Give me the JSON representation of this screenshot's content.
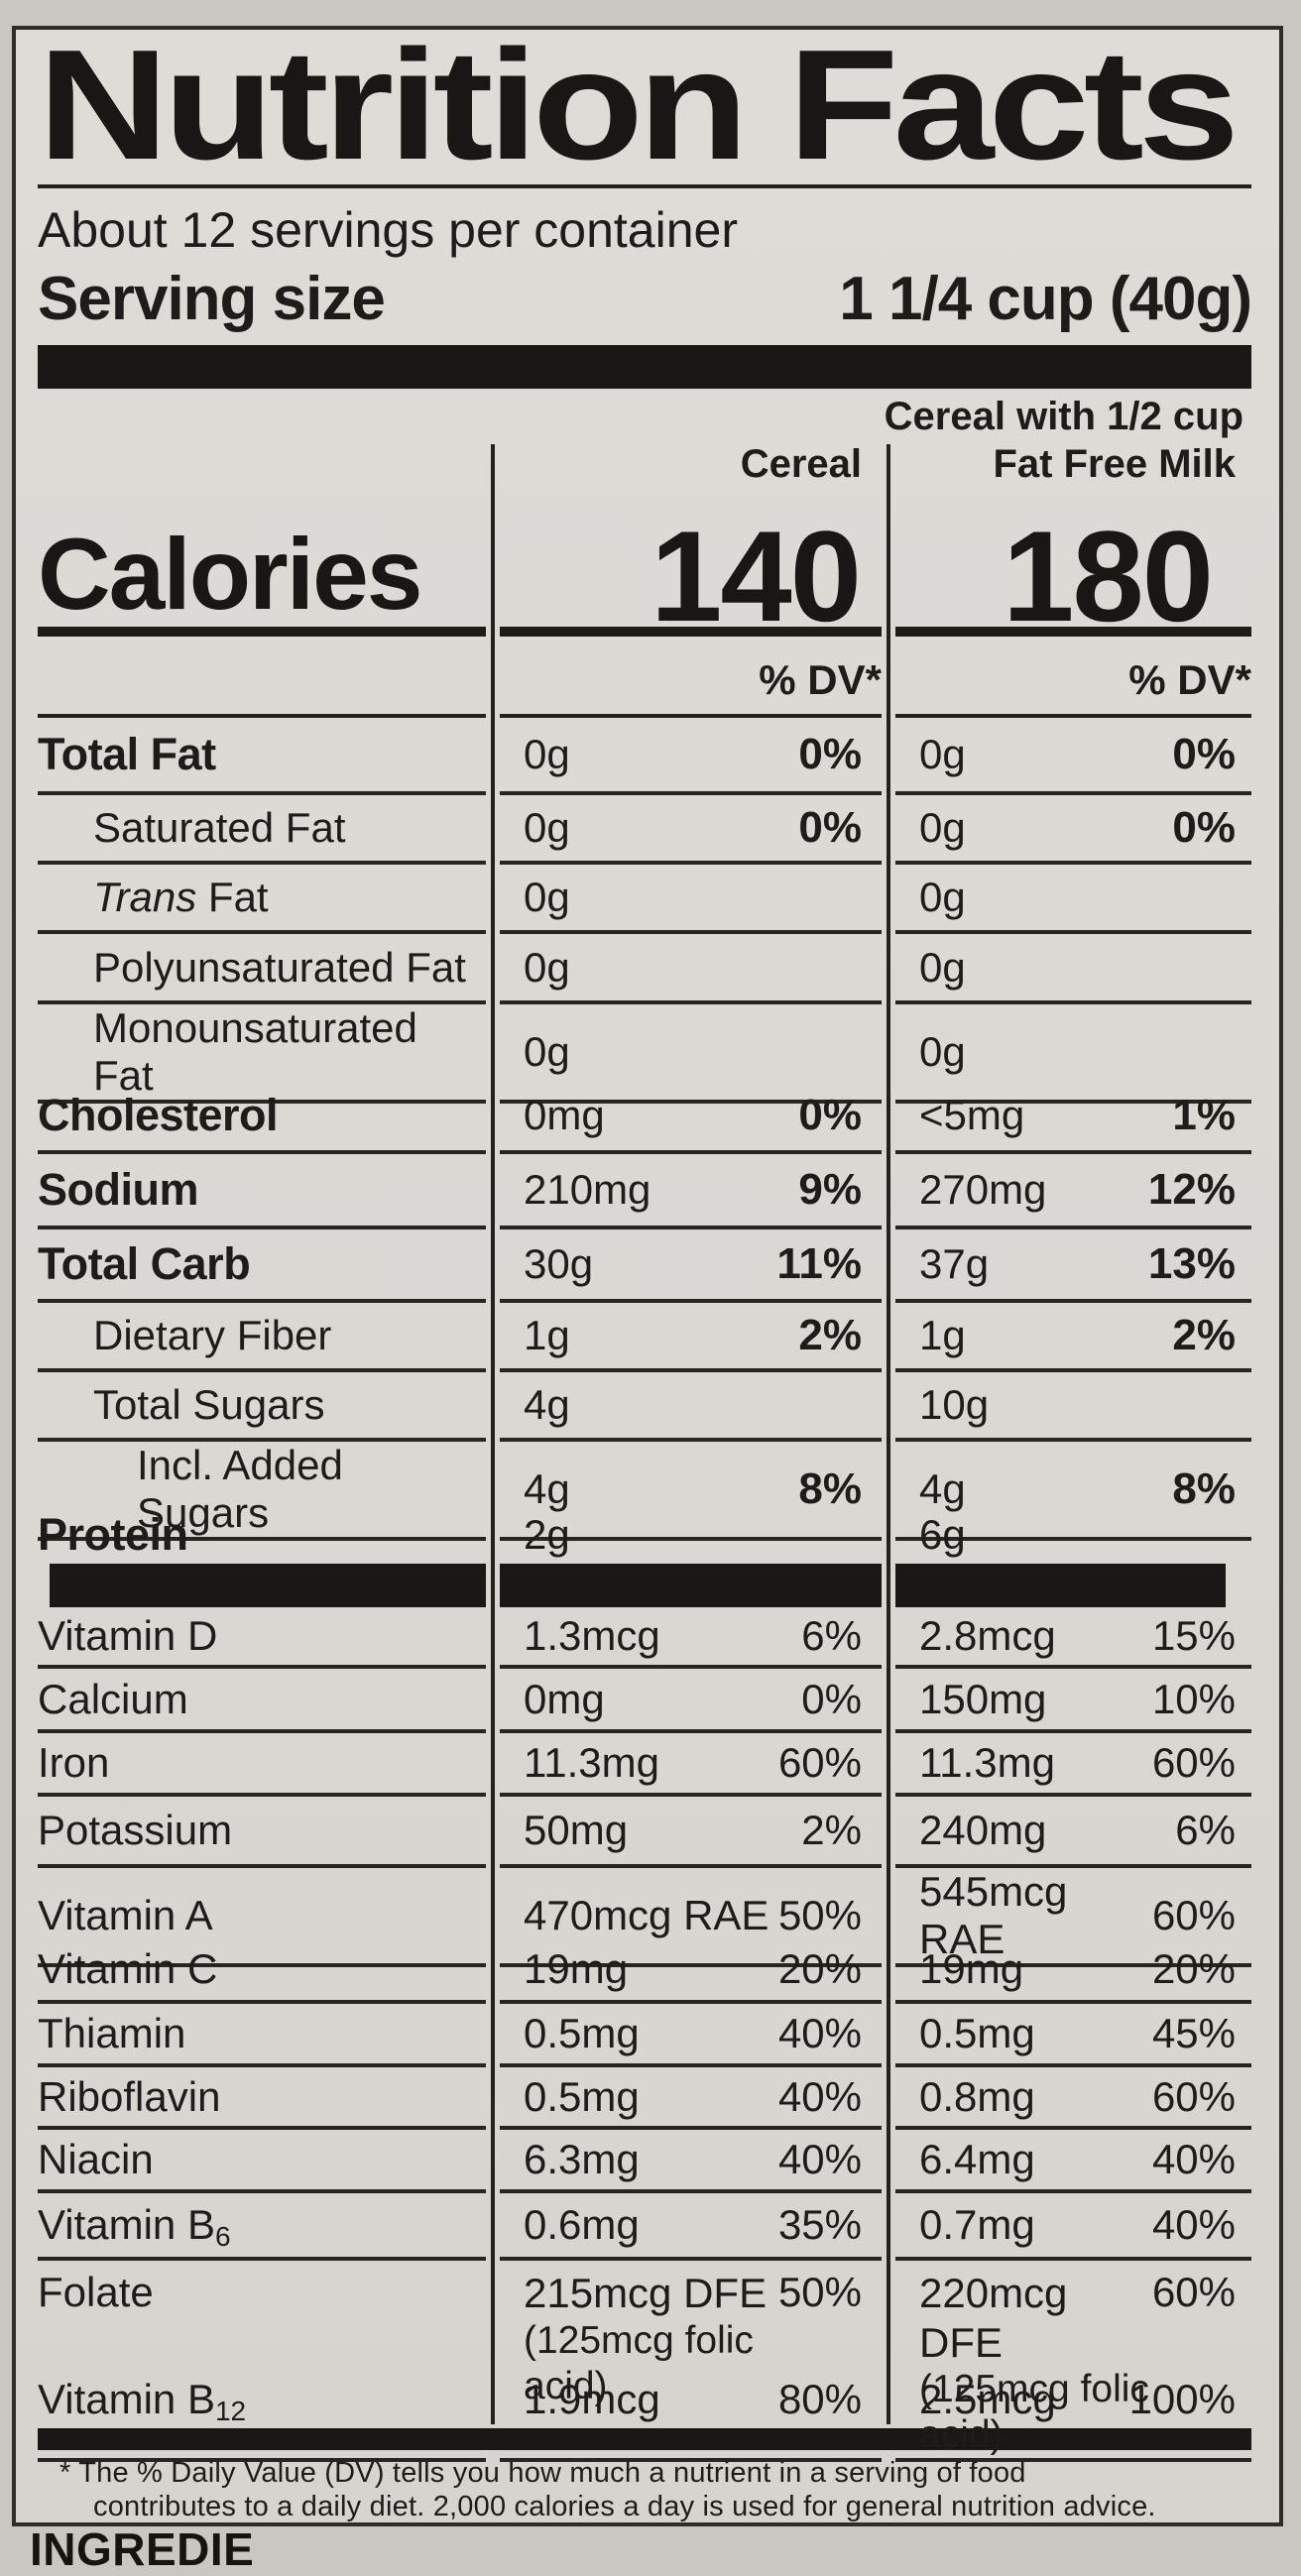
{
  "colors": {
    "paper": "#dad8d3",
    "ink": "#1d1c1a",
    "bar": "#191816"
  },
  "title": "Nutrition Facts",
  "servings_per_container": "About 12 servings per container",
  "serving_size": {
    "label": "Serving size",
    "value": "1 1/4 cup (40g)"
  },
  "columns": {
    "cereal_header": "Cereal",
    "milk_header_line1": "Cereal with 1/2 cup",
    "milk_header_line2": "Fat Free Milk",
    "dv_header_cereal": "% DV*",
    "dv_header_milk": "% DV*"
  },
  "calories": {
    "label": "Calories",
    "cereal": "140",
    "milk": "180"
  },
  "rows": [
    {
      "label": "Total Fat",
      "bold": true,
      "indent": 0,
      "h": 78,
      "c2_amt": "0g",
      "c2_dv": "0%",
      "c3_amt": "0g",
      "c3_dv": "0%",
      "dv_bold": true,
      "border": true
    },
    {
      "label": "Saturated Fat",
      "indent": 1,
      "h": 70,
      "c2_amt": "0g",
      "c2_dv": "0%",
      "c3_amt": "0g",
      "c3_dv": "0%",
      "dv_bold": true,
      "border": true
    },
    {
      "label": " Fat",
      "label_italic": "Trans",
      "indent": 1,
      "h": 70,
      "c2_amt": "0g",
      "c2_dv": "",
      "c3_amt": "0g",
      "c3_dv": "",
      "border": true
    },
    {
      "label": "Polyunsaturated Fat",
      "indent": 1,
      "h": 71,
      "c2_amt": "0g",
      "c2_dv": "",
      "c3_amt": "0g",
      "c3_dv": "",
      "border": true
    },
    {
      "label": "Monounsaturated Fat",
      "indent": 1,
      "h": 76,
      "c2_amt": "0g",
      "c2_dv": "",
      "c3_amt": "0g",
      "c3_dv": "",
      "border": true
    },
    {
      "label": "Cholesterol",
      "bold": true,
      "indent": 0,
      "h": 75,
      "c2_amt": "0mg",
      "c2_dv": "0%",
      "c3_amt": "<5mg",
      "c3_dv": "1%",
      "dv_bold": true,
      "border": true
    },
    {
      "label": "Sodium",
      "bold": true,
      "indent": 0,
      "h": 76,
      "c2_amt": "210mg",
      "c2_dv": "9%",
      "c3_amt": "270mg",
      "c3_dv": "12%",
      "dv_bold": true,
      "border": true
    },
    {
      "label": "Total Carb",
      "bold": true,
      "indent": 0,
      "h": 74,
      "c2_amt": "30g",
      "c2_dv": "11%",
      "c3_amt": "37g",
      "c3_dv": "13%",
      "dv_bold": true,
      "border": true
    },
    {
      "label": "Dietary Fiber",
      "indent": 1,
      "h": 70,
      "c2_amt": "1g",
      "c2_dv": "2%",
      "c3_amt": "1g",
      "c3_dv": "2%",
      "dv_bold": true,
      "border": true
    },
    {
      "label": "Total Sugars",
      "indent": 1,
      "h": 70,
      "c2_amt": "4g",
      "c2_dv": "",
      "c3_amt": "10g",
      "c3_dv": "",
      "border": true
    },
    {
      "label": "Incl. Added Sugars",
      "indent": 2,
      "h": 64,
      "c2_amt": "4g",
      "c2_dv": "8%",
      "c3_amt": "4g",
      "c3_dv": "8%",
      "dv_bold": true,
      "border": true
    },
    {
      "label": "Protein",
      "bold": true,
      "indent": 0,
      "h": 59,
      "c2_amt": "2g",
      "c2_dv": "",
      "c3_amt": "6g",
      "c3_dv": "",
      "border": false
    },
    {
      "type": "blackbar",
      "h": 44
    },
    {
      "label": "Vitamin D",
      "indent": 0,
      "h": 62,
      "c2_amt": "1.3mcg",
      "c2_dv": "6%",
      "c3_amt": "2.8mcg",
      "c3_dv": "15%",
      "border": true
    },
    {
      "label": "Calcium",
      "indent": 0,
      "h": 65,
      "c2_amt": "0mg",
      "c2_dv": "0%",
      "c3_amt": "150mg",
      "c3_dv": "10%",
      "border": true
    },
    {
      "label": "Iron",
      "indent": 0,
      "h": 64,
      "c2_amt": "11.3mg",
      "c2_dv": "60%",
      "c3_amt": "11.3mg",
      "c3_dv": "60%",
      "border": true
    },
    {
      "label": "Potassium",
      "indent": 0,
      "h": 72,
      "c2_amt": "50mg",
      "c2_dv": "2%",
      "c3_amt": "240mg",
      "c3_dv": "6%",
      "border": true
    },
    {
      "label": "Vitamin A",
      "indent": 0,
      "h": 70,
      "c2_amt": "470mcg RAE",
      "c2_dv": "50%",
      "c3_amt": "545mcg RAE",
      "c3_dv": "60%",
      "border": true
    },
    {
      "label": "Vitamin C",
      "indent": 0,
      "h": 67,
      "c2_amt": "19mg",
      "c2_dv": "20%",
      "c3_amt": "19mg",
      "c3_dv": "20%",
      "border": true
    },
    {
      "label": "Thiamin",
      "indent": 0,
      "h": 64,
      "c2_amt": "0.5mg",
      "c2_dv": "40%",
      "c3_amt": "0.5mg",
      "c3_dv": "45%",
      "border": true
    },
    {
      "label": "Riboflavin",
      "indent": 0,
      "h": 63,
      "c2_amt": "0.5mg",
      "c2_dv": "40%",
      "c3_amt": "0.8mg",
      "c3_dv": "60%",
      "border": true
    },
    {
      "label": "Niacin",
      "indent": 0,
      "h": 64,
      "c2_amt": "6.3mg",
      "c2_dv": "40%",
      "c3_amt": "6.4mg",
      "c3_dv": "40%",
      "border": true
    },
    {
      "label": "Vitamin B",
      "label_sub": "6",
      "indent": 0,
      "h": 68,
      "c2_amt": "0.6mg",
      "c2_dv": "35%",
      "c3_amt": "0.7mg",
      "c3_dv": "40%",
      "border": true
    },
    {
      "label": "Folate",
      "indent": 0,
      "h": 110,
      "tall": true,
      "c2_amt": "215mcg DFE",
      "c2_amt2": "(125mcg folic acid)",
      "c2_dv": "50%",
      "c3_amt": "220mcg DFE",
      "c3_amt2": "(125mcg folic acid)",
      "c3_dv": "60%",
      "border": true
    },
    {
      "label": "Vitamin B",
      "label_sub": "12",
      "indent": 0,
      "h": 59,
      "c2_amt": "1.9mcg",
      "c2_dv": "80%",
      "c3_amt": "2.5mcg",
      "c3_dv": "100%",
      "border": false
    }
  ],
  "footnote_lines": [
    "* The % Daily Value (DV) tells you how much a nutrient in a serving of food",
    "contributes to a daily diet. 2,000 calories a day is used for general nutrition advice."
  ],
  "ingredients_partial": "INGREDIE"
}
